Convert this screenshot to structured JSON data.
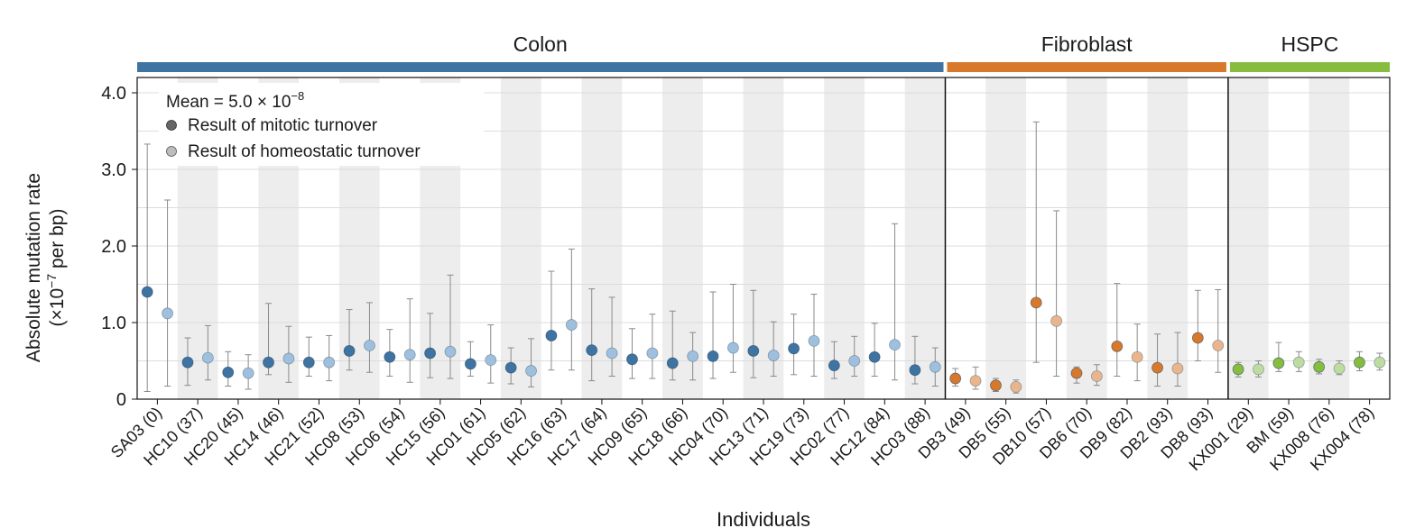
{
  "chart_data": {
    "type": "scatter",
    "xlabel": "Individuals",
    "ylabel_line1": "Absolute mutation rate",
    "ylabel_line2_prefix": "(×10",
    "ylabel_line2_exp": "−7",
    "ylabel_line2_suffix": " per bp)",
    "ylim": [
      0,
      4.2
    ],
    "yticks": [
      {
        "value": 0,
        "label": "0"
      },
      {
        "value": 1,
        "label": "1.0"
      },
      {
        "value": 2,
        "label": "2.0"
      },
      {
        "value": 3,
        "label": "3.0"
      },
      {
        "value": 4,
        "label": "4.0"
      }
    ],
    "legend": {
      "mean_prefix": "Mean = 5.0 × 10",
      "mean_exp": "−8",
      "mitotic_label": "Result of mitotic turnover",
      "homeostatic_label": "Result of homeostatic turnover",
      "placement": "top-left"
    },
    "groups": [
      {
        "name": "Colon",
        "color": "#3f73a1",
        "light_color": "#9ec0de",
        "start": 0,
        "end": 19
      },
      {
        "name": "Fibroblast",
        "color": "#d8782b",
        "light_color": "#eab58d",
        "start": 20,
        "end": 26
      },
      {
        "name": "HSPC",
        "color": "#86bd3e",
        "light_color": "#bfdca0",
        "start": 27,
        "end": 30
      }
    ],
    "individuals": [
      {
        "label": "SA03 (0)",
        "mitotic": {
          "value": 1.4,
          "low": 0.1,
          "high": 3.33
        },
        "homeostatic": {
          "value": 1.12,
          "low": 0.17,
          "high": 2.6
        }
      },
      {
        "label": "HC10 (37)",
        "mitotic": {
          "value": 0.48,
          "low": 0.18,
          "high": 0.8
        },
        "homeostatic": {
          "value": 0.54,
          "low": 0.25,
          "high": 0.96
        }
      },
      {
        "label": "HC20 (45)",
        "mitotic": {
          "value": 0.35,
          "low": 0.17,
          "high": 0.62
        },
        "homeostatic": {
          "value": 0.34,
          "low": 0.13,
          "high": 0.58
        }
      },
      {
        "label": "HC14 (46)",
        "mitotic": {
          "value": 0.48,
          "low": 0.32,
          "high": 1.25
        },
        "homeostatic": {
          "value": 0.53,
          "low": 0.22,
          "high": 0.95
        }
      },
      {
        "label": "HC21 (52)",
        "mitotic": {
          "value": 0.48,
          "low": 0.3,
          "high": 0.81
        },
        "homeostatic": {
          "value": 0.48,
          "low": 0.24,
          "high": 0.83
        }
      },
      {
        "label": "HC08 (53)",
        "mitotic": {
          "value": 0.63,
          "low": 0.38,
          "high": 1.17
        },
        "homeostatic": {
          "value": 0.7,
          "low": 0.35,
          "high": 1.26
        }
      },
      {
        "label": "HC06 (54)",
        "mitotic": {
          "value": 0.55,
          "low": 0.3,
          "high": 0.91
        },
        "homeostatic": {
          "value": 0.58,
          "low": 0.22,
          "high": 1.31
        }
      },
      {
        "label": "HC15 (56)",
        "mitotic": {
          "value": 0.6,
          "low": 0.28,
          "high": 1.12
        },
        "homeostatic": {
          "value": 0.62,
          "low": 0.27,
          "high": 1.62
        }
      },
      {
        "label": "HC01 (61)",
        "mitotic": {
          "value": 0.46,
          "low": 0.3,
          "high": 0.75
        },
        "homeostatic": {
          "value": 0.51,
          "low": 0.21,
          "high": 0.97
        }
      },
      {
        "label": "HC05 (62)",
        "mitotic": {
          "value": 0.41,
          "low": 0.2,
          "high": 0.67
        },
        "homeostatic": {
          "value": 0.37,
          "low": 0.16,
          "high": 0.79
        }
      },
      {
        "label": "HC16 (63)",
        "mitotic": {
          "value": 0.83,
          "low": 0.38,
          "high": 1.67
        },
        "homeostatic": {
          "value": 0.97,
          "low": 0.38,
          "high": 1.96
        }
      },
      {
        "label": "HC17 (64)",
        "mitotic": {
          "value": 0.64,
          "low": 0.24,
          "high": 1.44
        },
        "homeostatic": {
          "value": 0.6,
          "low": 0.3,
          "high": 1.33
        }
      },
      {
        "label": "HC09 (65)",
        "mitotic": {
          "value": 0.52,
          "low": 0.27,
          "high": 0.92
        },
        "homeostatic": {
          "value": 0.6,
          "low": 0.27,
          "high": 1.11
        }
      },
      {
        "label": "HC18 (66)",
        "mitotic": {
          "value": 0.47,
          "low": 0.25,
          "high": 1.15
        },
        "homeostatic": {
          "value": 0.56,
          "low": 0.25,
          "high": 0.87
        }
      },
      {
        "label": "HC04 (70)",
        "mitotic": {
          "value": 0.56,
          "low": 0.27,
          "high": 1.4
        },
        "homeostatic": {
          "value": 0.67,
          "low": 0.35,
          "high": 1.5
        }
      },
      {
        "label": "HC13 (71)",
        "mitotic": {
          "value": 0.63,
          "low": 0.28,
          "high": 1.42
        },
        "homeostatic": {
          "value": 0.57,
          "low": 0.3,
          "high": 1.01
        }
      },
      {
        "label": "HC19 (73)",
        "mitotic": {
          "value": 0.66,
          "low": 0.32,
          "high": 1.11
        },
        "homeostatic": {
          "value": 0.76,
          "low": 0.3,
          "high": 1.37
        }
      },
      {
        "label": "HC02 (77)",
        "mitotic": {
          "value": 0.44,
          "low": 0.27,
          "high": 0.75
        },
        "homeostatic": {
          "value": 0.5,
          "low": 0.3,
          "high": 0.82
        }
      },
      {
        "label": "HC12 (84)",
        "mitotic": {
          "value": 0.55,
          "low": 0.3,
          "high": 0.99
        },
        "homeostatic": {
          "value": 0.71,
          "low": 0.25,
          "high": 2.29
        }
      },
      {
        "label": "HC03 (88)",
        "mitotic": {
          "value": 0.38,
          "low": 0.2,
          "high": 0.82
        },
        "homeostatic": {
          "value": 0.42,
          "low": 0.17,
          "high": 0.67
        }
      },
      {
        "label": "DB3 (49)",
        "mitotic": {
          "value": 0.27,
          "low": 0.17,
          "high": 0.4
        },
        "homeostatic": {
          "value": 0.24,
          "low": 0.13,
          "high": 0.42
        }
      },
      {
        "label": "DB5 (55)",
        "mitotic": {
          "value": 0.18,
          "low": 0.1,
          "high": 0.27
        },
        "homeostatic": {
          "value": 0.16,
          "low": 0.08,
          "high": 0.25
        }
      },
      {
        "label": "DB10 (57)",
        "mitotic": {
          "value": 1.26,
          "low": 0.48,
          "high": 3.62
        },
        "homeostatic": {
          "value": 1.02,
          "low": 0.3,
          "high": 2.46
        }
      },
      {
        "label": "DB6 (70)",
        "mitotic": {
          "value": 0.34,
          "low": 0.21,
          "high": 0.42
        },
        "homeostatic": {
          "value": 0.3,
          "low": 0.18,
          "high": 0.45
        }
      },
      {
        "label": "DB9 (82)",
        "mitotic": {
          "value": 0.69,
          "low": 0.3,
          "high": 1.51
        },
        "homeostatic": {
          "value": 0.55,
          "low": 0.24,
          "high": 0.98
        }
      },
      {
        "label": "DB2 (93)",
        "mitotic": {
          "value": 0.41,
          "low": 0.17,
          "high": 0.85
        },
        "homeostatic": {
          "value": 0.4,
          "low": 0.17,
          "high": 0.87
        }
      },
      {
        "label": "DB8 (93)",
        "mitotic": {
          "value": 0.8,
          "low": 0.5,
          "high": 1.42
        },
        "homeostatic": {
          "value": 0.7,
          "low": 0.35,
          "high": 1.43
        }
      },
      {
        "label": "KX001 (29)",
        "mitotic": {
          "value": 0.39,
          "low": 0.29,
          "high": 0.48
        },
        "homeostatic": {
          "value": 0.39,
          "low": 0.29,
          "high": 0.5
        }
      },
      {
        "label": "BM (59)",
        "mitotic": {
          "value": 0.47,
          "low": 0.36,
          "high": 0.74
        },
        "homeostatic": {
          "value": 0.48,
          "low": 0.36,
          "high": 0.62
        }
      },
      {
        "label": "KX008 (76)",
        "mitotic": {
          "value": 0.42,
          "low": 0.33,
          "high": 0.52
        },
        "homeostatic": {
          "value": 0.4,
          "low": 0.32,
          "high": 0.5
        }
      },
      {
        "label": "KX004 (78)",
        "mitotic": {
          "value": 0.48,
          "low": 0.37,
          "high": 0.62
        },
        "homeostatic": {
          "value": 0.48,
          "low": 0.38,
          "high": 0.6
        }
      }
    ],
    "legend_colors": {
      "mitotic": "#666666",
      "homeostatic": "#bdbdbd"
    },
    "grid": "horizontal",
    "alternating_column_shading": true
  }
}
